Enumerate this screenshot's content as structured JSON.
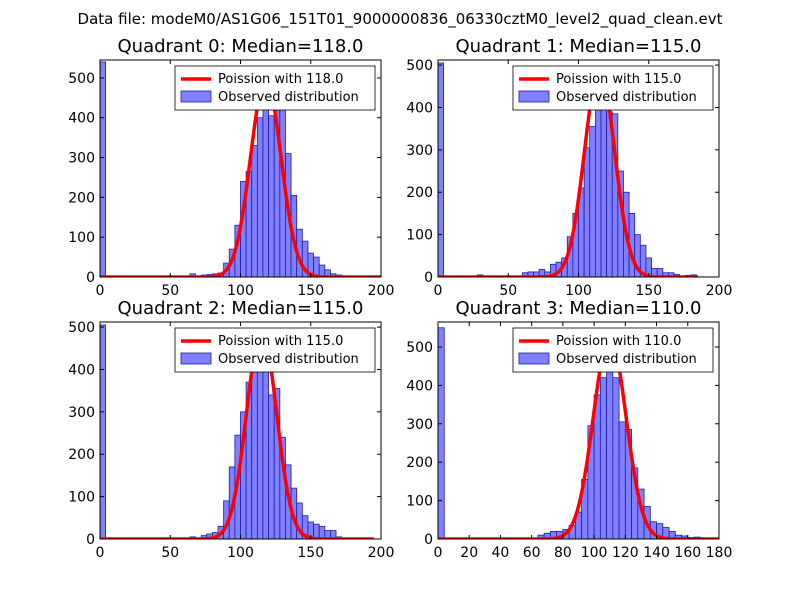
{
  "suptitle": "Data file: modeM0/AS1G06_151T01_9000000836_06330cztM0_level2_quad_clean.evt",
  "colors": {
    "bar_fill": "#8080ff",
    "bar_edge": "#1c1caa",
    "poisson_line": "#ff0000",
    "legend_edge": "#000000"
  },
  "chart_data": [
    {
      "type": "bar",
      "title": "Quadrant 0: Median=118.0",
      "xlim": [
        0,
        200
      ],
      "ylim": [
        0,
        545
      ],
      "xticks": [
        0,
        50,
        100,
        150,
        200
      ],
      "yticks": [
        0,
        100,
        200,
        300,
        400,
        500
      ],
      "bin_width": 4,
      "bins": [
        [
          0,
          540
        ],
        [
          64,
          8
        ],
        [
          72,
          5
        ],
        [
          76,
          6
        ],
        [
          80,
          8
        ],
        [
          84,
          10
        ],
        [
          88,
          35
        ],
        [
          92,
          70
        ],
        [
          96,
          130
        ],
        [
          100,
          240
        ],
        [
          104,
          265
        ],
        [
          108,
          330
        ],
        [
          112,
          400
        ],
        [
          116,
          450
        ],
        [
          120,
          405
        ],
        [
          124,
          425
        ],
        [
          128,
          425
        ],
        [
          132,
          310
        ],
        [
          136,
          205
        ],
        [
          140,
          120
        ],
        [
          144,
          90
        ],
        [
          148,
          60
        ],
        [
          152,
          50
        ],
        [
          156,
          30
        ],
        [
          160,
          18
        ],
        [
          164,
          8
        ],
        [
          168,
          5
        ]
      ],
      "poisson": {
        "label": "Poission with 118.0",
        "mean": 118.0,
        "peak": 497,
        "x_range": [
          0,
          200
        ]
      },
      "legend": [
        "Poission with 118.0",
        "Observed distribution"
      ]
    },
    {
      "type": "bar",
      "title": "Quadrant 1: Median=115.0",
      "xlim": [
        0,
        200
      ],
      "ylim": [
        0,
        512
      ],
      "xticks": [
        0,
        50,
        100,
        150,
        200
      ],
      "yticks": [
        0,
        100,
        200,
        300,
        400,
        500
      ],
      "bin_width": 4,
      "bins": [
        [
          0,
          505
        ],
        [
          28,
          5
        ],
        [
          60,
          10
        ],
        [
          64,
          12
        ],
        [
          68,
          12
        ],
        [
          72,
          18
        ],
        [
          76,
          12
        ],
        [
          80,
          30
        ],
        [
          84,
          35
        ],
        [
          88,
          45
        ],
        [
          92,
          95
        ],
        [
          96,
          150
        ],
        [
          100,
          210
        ],
        [
          104,
          305
        ],
        [
          108,
          355
        ],
        [
          112,
          405
        ],
        [
          116,
          415
        ],
        [
          120,
          390
        ],
        [
          124,
          385
        ],
        [
          128,
          250
        ],
        [
          132,
          200
        ],
        [
          136,
          150
        ],
        [
          140,
          100
        ],
        [
          144,
          75
        ],
        [
          148,
          45
        ],
        [
          152,
          20
        ],
        [
          156,
          20
        ],
        [
          160,
          10
        ],
        [
          164,
          10
        ],
        [
          168,
          6
        ],
        [
          176,
          4
        ],
        [
          180,
          5
        ]
      ],
      "poisson": {
        "label": "Poission with 115.0",
        "mean": 115.0,
        "peak": 490,
        "x_range": [
          0,
          185
        ]
      },
      "legend": [
        "Poission with 115.0",
        "Observed distribution"
      ]
    },
    {
      "type": "bar",
      "title": "Quadrant 2: Median=115.0",
      "xlim": [
        0,
        200
      ],
      "ylim": [
        0,
        512
      ],
      "xticks": [
        0,
        50,
        100,
        150,
        200
      ],
      "yticks": [
        0,
        100,
        200,
        300,
        400,
        500
      ],
      "bin_width": 4,
      "bins": [
        [
          0,
          505
        ],
        [
          64,
          5
        ],
        [
          72,
          8
        ],
        [
          76,
          12
        ],
        [
          80,
          15
        ],
        [
          84,
          30
        ],
        [
          88,
          90
        ],
        [
          92,
          170
        ],
        [
          96,
          245
        ],
        [
          100,
          300
        ],
        [
          104,
          370
        ],
        [
          108,
          445
        ],
        [
          112,
          445
        ],
        [
          116,
          430
        ],
        [
          120,
          340
        ],
        [
          124,
          355
        ],
        [
          128,
          240
        ],
        [
          132,
          175
        ],
        [
          136,
          120
        ],
        [
          140,
          85
        ],
        [
          144,
          55
        ],
        [
          148,
          40
        ],
        [
          152,
          35
        ],
        [
          156,
          30
        ],
        [
          160,
          20
        ],
        [
          164,
          20
        ],
        [
          168,
          5
        ]
      ],
      "poisson": {
        "label": "Poission with 115.0",
        "mean": 115.0,
        "peak": 490,
        "x_range": [
          0,
          195
        ]
      },
      "legend": [
        "Poission with 115.0",
        "Observed distribution"
      ]
    },
    {
      "type": "bar",
      "title": "Quadrant 3: Median=110.0",
      "xlim": [
        0,
        180
      ],
      "ylim": [
        0,
        565
      ],
      "xticks": [
        0,
        20,
        40,
        60,
        80,
        100,
        120,
        140,
        160,
        180
      ],
      "yticks": [
        0,
        100,
        200,
        300,
        400,
        500
      ],
      "bin_width": 4,
      "bins": [
        [
          0,
          550
        ],
        [
          64,
          10
        ],
        [
          68,
          15
        ],
        [
          72,
          20
        ],
        [
          76,
          20
        ],
        [
          80,
          25
        ],
        [
          84,
          35
        ],
        [
          88,
          70
        ],
        [
          92,
          155
        ],
        [
          96,
          295
        ],
        [
          100,
          375
        ],
        [
          104,
          420
        ],
        [
          108,
          455
        ],
        [
          112,
          420
        ],
        [
          116,
          305
        ],
        [
          120,
          285
        ],
        [
          124,
          185
        ],
        [
          128,
          130
        ],
        [
          132,
          85
        ],
        [
          136,
          45
        ],
        [
          140,
          40
        ],
        [
          144,
          30
        ],
        [
          148,
          20
        ],
        [
          152,
          10
        ],
        [
          156,
          8
        ],
        [
          160,
          4
        ],
        [
          164,
          5
        ]
      ],
      "poisson": {
        "label": "Poission with 110.0",
        "mean": 110.0,
        "peak": 525,
        "x_range": [
          0,
          180
        ]
      },
      "legend": [
        "Poission with 110.0",
        "Observed distribution"
      ]
    }
  ]
}
